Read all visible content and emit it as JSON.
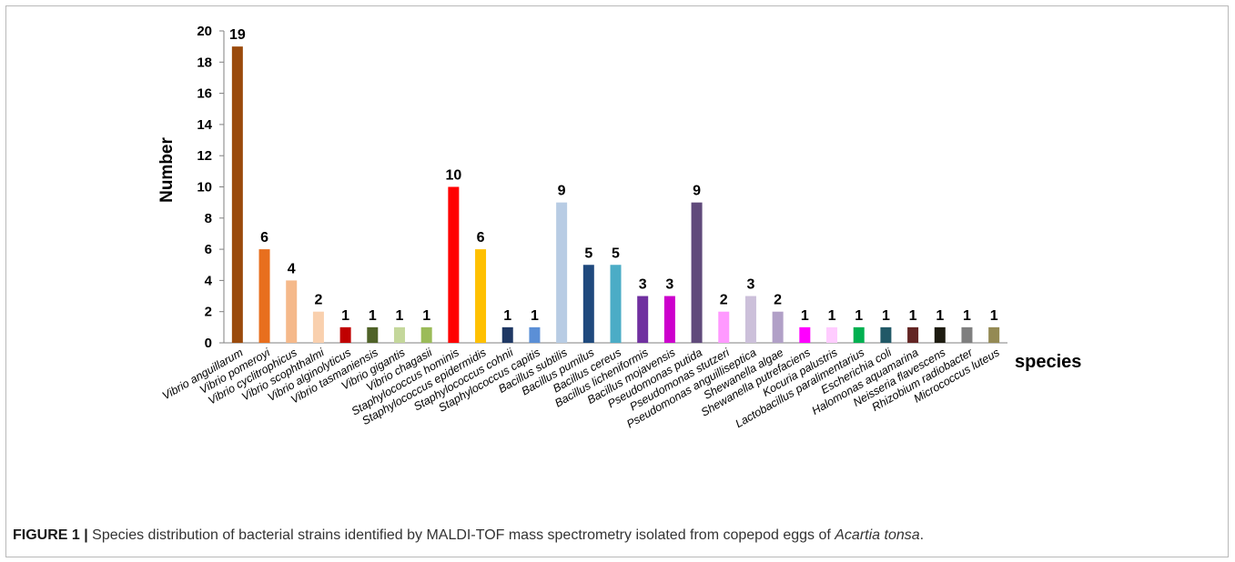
{
  "caption": {
    "label": "FIGURE 1 |",
    "text_before": "Species distribution of bacterial strains identified by MALDI-TOF mass spectrometry isolated from copepod eggs of",
    "italic": "Acartia tonsa",
    "text_after": "."
  },
  "chart_data": {
    "type": "bar",
    "title": "",
    "xlabel": "species",
    "ylabel": "Number",
    "ylim": [
      0,
      20
    ],
    "yticks": [
      0,
      2,
      4,
      6,
      8,
      10,
      12,
      14,
      16,
      18,
      20
    ],
    "grid": false,
    "legend": "none",
    "data_labels": true,
    "categories": [
      "Vibrio anguillarum",
      "Vibrio pomeroyi",
      "Vibrio cyclitrophicus",
      "Vibrio scophthalmi",
      "Vibrio alginolyticus",
      "Vibrio tasmaniensis",
      "Vibrio gigantis",
      "Vibrio chagasii",
      "Staphylococcus hominis",
      "Staphylococcus epidermidis",
      "Staphylococcus cohnii",
      "Staphylococcus capitis",
      "Bacillus subtilis",
      "Bacillus pumilus",
      "Bacillus cereus",
      "Bacillus licheniformis",
      "Bacillus mojavensis",
      "Pseudomonas putida",
      "Pseudomonas stutzeri",
      "Pseudomonas anguilliseptica",
      "Shewanella algae",
      "Shewanella putrefaciens",
      "Kocuria palustris",
      "Lactobacillus paralimentarius",
      "Escherichia coli",
      "Halomonas aquamarina",
      "Neisseria flavescens",
      "Rhizobium radiobacter",
      "Micrococcus luteus"
    ],
    "values": [
      19,
      6,
      4,
      2,
      1,
      1,
      1,
      1,
      10,
      6,
      1,
      1,
      9,
      5,
      5,
      3,
      3,
      9,
      2,
      3,
      2,
      1,
      1,
      1,
      1,
      1,
      1,
      1,
      1
    ],
    "colors": [
      "#9a4a0c",
      "#e86f1e",
      "#f5b98a",
      "#f9d0ae",
      "#c00000",
      "#4f6228",
      "#c4d79b",
      "#9bbb59",
      "#ff0000",
      "#ffc000",
      "#1f3864",
      "#5b8fd6",
      "#b8cce4",
      "#1f497d",
      "#4bacc6",
      "#7030a0",
      "#cc00cc",
      "#604a7b",
      "#ff99ff",
      "#ccc0da",
      "#b1a0c7",
      "#ff00ff",
      "#ffccff",
      "#00b050",
      "#215967",
      "#632523",
      "#1d1b10",
      "#7f7f7f",
      "#948a54"
    ]
  }
}
